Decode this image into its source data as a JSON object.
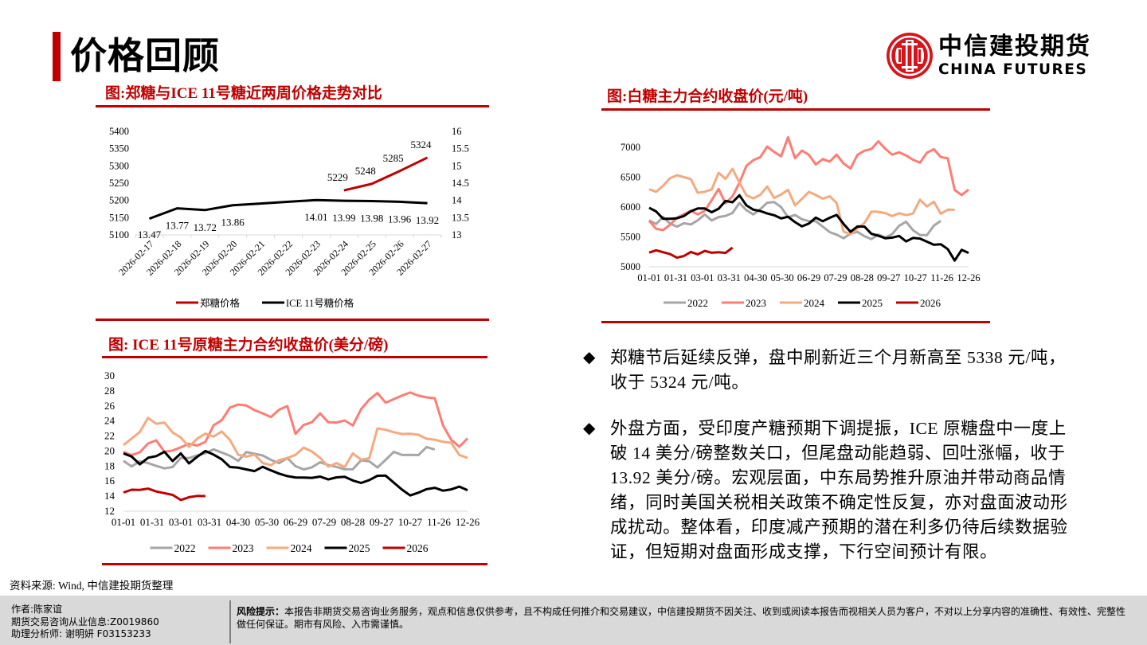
{
  "header": {
    "title": "价格回顾",
    "logo_cn": "中信建投期货",
    "logo_en": "CHINA FUTURES",
    "accent_color": "#c00000"
  },
  "figures": {
    "fig1_title": "图:郑糖与ICE 11号糖近两周价格走势对比",
    "fig2_title": "图:白糖主力合约收盘价(元/吨)",
    "fig3_title": "图: ICE 11号原糖主力合约收盘价(美分/磅)"
  },
  "chart_data": [
    {
      "type": "line",
      "title": "郑糖与ICE 11号糖近两周价格走势对比",
      "categories": [
        "2026-02-17",
        "2026-02-18",
        "2026-02-19",
        "2026-02-20",
        "2026-02-21",
        "2026-02-22",
        "2026-02-23",
        "2026-02-24",
        "2026-02-25",
        "2026-02-26",
        "2026-02-27"
      ],
      "y_left": {
        "min": 5100,
        "max": 5400,
        "ticks": [
          5100,
          5150,
          5200,
          5250,
          5300,
          5350,
          5400
        ]
      },
      "y_right": {
        "min": 13,
        "max": 16,
        "ticks": [
          "13",
          "13.5",
          "14",
          "14.5",
          "15",
          "15.5",
          "16"
        ]
      },
      "series": [
        {
          "name": "郑糖价格",
          "axis": "left",
          "color": "#c00000",
          "values": [
            null,
            null,
            null,
            null,
            null,
            null,
            null,
            5229,
            5248,
            5285,
            5324
          ],
          "labels": [
            "",
            "",
            "",
            "",
            "",
            "",
            "",
            "5229",
            "5248",
            "5285",
            "5324"
          ]
        },
        {
          "name": "ICE 11号糖价格",
          "axis": "right",
          "color": "#000000",
          "values": [
            13.47,
            13.77,
            13.72,
            13.86,
            13.91,
            13.96,
            14.01,
            13.99,
            13.98,
            13.96,
            13.92
          ],
          "labels": [
            "13.47",
            "13.77",
            "13.72",
            "13.86",
            "",
            "",
            "14.01",
            "13.99",
            "13.98",
            "13.96",
            "13.92"
          ]
        }
      ],
      "legend": [
        "郑糖价格",
        "ICE 11号糖价格"
      ],
      "legend_position": "bottom"
    },
    {
      "type": "line",
      "title": "白糖主力合约收盘价(元/吨)",
      "x_ticks": [
        "01-01",
        "01-31",
        "03-01",
        "03-31",
        "04-30",
        "05-30",
        "06-29",
        "07-29",
        "08-28",
        "09-27",
        "10-27",
        "11-26",
        "12-26"
      ],
      "ylim": [
        5000,
        7000
      ],
      "y_ticks": [
        "5000",
        "5500",
        "6000",
        "6500",
        "7000"
      ],
      "series": [
        {
          "name": "2022",
          "color": "#a6a6a6",
          "values": [
            5790,
            5720,
            5830,
            5710,
            5680,
            5730,
            5700,
            5790,
            5880,
            5770,
            5820,
            5860,
            5900,
            6060,
            5960,
            5880,
            5960,
            6060,
            6090,
            6000,
            5820,
            5880,
            5800,
            5760,
            5750,
            5680,
            5580,
            5530,
            5490,
            5560,
            5580,
            5500,
            5470,
            5540,
            5480,
            5560,
            5690,
            5750,
            5600,
            5540,
            5530,
            5680,
            5780
          ]
        },
        {
          "name": "2023",
          "color": "#ff7c74",
          "values": [
            5780,
            5640,
            5610,
            5690,
            5830,
            5880,
            5930,
            5890,
            5940,
            6110,
            6290,
            6070,
            6180,
            6400,
            6700,
            6790,
            6830,
            7000,
            6930,
            6850,
            7160,
            6830,
            6950,
            6870,
            6700,
            6810,
            6760,
            6870,
            6740,
            6650,
            6870,
            6930,
            6980,
            7100,
            6970,
            6890,
            6920,
            6860,
            6780,
            6750,
            6910,
            6960,
            6850,
            6820,
            6280,
            6190,
            6300
          ]
        },
        {
          "name": "2024",
          "color": "#f4a97f",
          "values": [
            6310,
            6260,
            6350,
            6470,
            6540,
            6500,
            6460,
            6250,
            6260,
            6290,
            6560,
            6480,
            6640,
            6400,
            6210,
            6150,
            6200,
            6330,
            6160,
            6210,
            6280,
            6040,
            6140,
            6250,
            6190,
            6150,
            6180,
            6060,
            5600,
            5550,
            5640,
            5720,
            5930,
            5920,
            5890,
            5860,
            5900,
            5860,
            5880,
            6130,
            6010,
            6080,
            5900,
            5960,
            5950
          ]
        },
        {
          "name": "2025",
          "color": "#000000",
          "values": [
            6000,
            5930,
            5800,
            5790,
            5820,
            5850,
            5920,
            5990,
            5980,
            5910,
            5960,
            6110,
            6080,
            6190,
            6040,
            5960,
            5930,
            5880,
            5870,
            5810,
            5830,
            5760,
            5680,
            5720,
            5810,
            5770,
            5820,
            5860,
            5730,
            5590,
            5670,
            5660,
            5560,
            5520,
            5470,
            5500,
            5520,
            5420,
            5470,
            5480,
            5420,
            5360,
            5390,
            5300,
            5100,
            5270,
            5240
          ]
        },
        {
          "name": "2026",
          "color": "#c00000",
          "values": [
            5250,
            5280,
            5240,
            5200,
            5160,
            5180,
            5240,
            5220,
            5270,
            5230,
            5230,
            5240,
            5320
          ]
        }
      ],
      "legend": [
        "2022",
        "2023",
        "2024",
        "2025",
        "2026"
      ],
      "legend_position": "bottom"
    },
    {
      "type": "line",
      "title": "ICE 11号原糖主力合约收盘价(美分/磅)",
      "x_ticks": [
        "01-01",
        "01-31",
        "03-01",
        "03-31",
        "04-30",
        "05-30",
        "06-29",
        "07-29",
        "08-28",
        "09-27",
        "10-27",
        "11-26",
        "12-26"
      ],
      "ylim": [
        12,
        30
      ],
      "y_ticks": [
        "12",
        "14",
        "16",
        "18",
        "20",
        "22",
        "24",
        "26",
        "28",
        "30"
      ],
      "series": [
        {
          "name": "2022",
          "color": "#a6a6a6",
          "values": [
            18.8,
            18.0,
            18.6,
            18.3,
            18.1,
            17.7,
            17.8,
            19.2,
            19.1,
            19.4,
            19.6,
            20.3,
            19.8,
            19.3,
            18.8,
            19.9,
            19.6,
            19.3,
            18.9,
            18.4,
            19.0,
            18.1,
            17.6,
            17.8,
            18.4,
            18.2,
            17.9,
            17.5,
            17.7,
            18.8,
            18.6,
            17.7,
            18.9,
            19.9,
            19.4,
            19.6,
            19.5,
            20.5,
            20.1
          ]
        },
        {
          "name": "2023",
          "color": "#ff7c74",
          "values": [
            20.0,
            19.5,
            19.8,
            20.9,
            21.5,
            19.9,
            20.0,
            20.6,
            21.0,
            20.7,
            21.1,
            23.5,
            24.1,
            25.7,
            26.3,
            26.1,
            25.4,
            24.9,
            24.6,
            25.5,
            25.9,
            22.4,
            23.5,
            23.8,
            24.9,
            23.9,
            23.8,
            24.0,
            23.5,
            25.6,
            26.8,
            27.6,
            26.5,
            26.9,
            27.3,
            27.9,
            27.4,
            27.1,
            26.9,
            23.5,
            21.5,
            20.5,
            21.8
          ]
        },
        {
          "name": "2024",
          "color": "#f4a97f",
          "values": [
            20.9,
            21.7,
            22.5,
            24.3,
            23.7,
            23.8,
            22.4,
            21.9,
            20.6,
            21.6,
            22.2,
            22.0,
            22.6,
            21.4,
            19.6,
            19.3,
            19.5,
            18.3,
            18.2,
            18.8,
            19.0,
            19.6,
            20.5,
            19.9,
            19.0,
            18.0,
            18.4,
            17.8,
            19.8,
            18.9,
            19.0,
            22.9,
            22.9,
            22.5,
            22.2,
            22.4,
            22.2,
            21.6,
            21.4,
            21.3,
            21.1,
            19.4,
            19.2
          ]
        },
        {
          "name": "2025",
          "color": "#000000",
          "values": [
            19.8,
            19.3,
            18.2,
            19.0,
            19.4,
            19.9,
            18.6,
            19.8,
            18.4,
            19.2,
            19.9,
            19.6,
            18.9,
            17.8,
            17.9,
            17.6,
            17.3,
            17.8,
            17.5,
            17.0,
            16.6,
            16.6,
            16.5,
            16.4,
            16.5,
            16.3,
            16.5,
            16.5,
            16.2,
            15.8,
            16.1,
            16.6,
            16.8,
            15.8,
            14.8,
            14.2,
            14.5,
            14.9,
            15.0,
            14.8,
            14.9,
            15.2,
            14.9
          ]
        },
        {
          "name": "2026",
          "color": "#c00000",
          "values": [
            14.6,
            14.9,
            14.8,
            14.9,
            14.7,
            14.4,
            14.1,
            13.6,
            13.9,
            14.0,
            13.9
          ]
        }
      ],
      "legend": [
        "2022",
        "2023",
        "2024",
        "2025",
        "2026"
      ],
      "legend_position": "bottom"
    }
  ],
  "commentary": {
    "bullet_mark": "◆",
    "bullets": [
      "郑糖节后延续反弹，盘中刷新近三个月新高至 5338 元/吨，收于 5324 元/吨。",
      "外盘方面，受印度产糖预期下调提振，ICE 原糖盘中一度上破 14 美分/磅整数关口，但尾盘动能趋弱、回吐涨幅，收于 13.92 美分/磅。宏观层面，中东局势推升原油并带动商品情绪，同时美国关税相关政策不确定性反复，亦对盘面波动形成扰动。整体看，印度减产预期的潜在利多仍待后续数据验证，但短期对盘面形成支撑，下行空间预计有限。"
    ]
  },
  "source": "资料来源: Wind, 中信建投期货整理",
  "footer": {
    "author": "作者:陈家谊",
    "license": "期货交易咨询从业信息:Z0019860",
    "assistant": "助理分析师:  谢明妍 F03153233",
    "risk_label": "风险提示：",
    "risk_text": "本报告非期货交易咨询业务服务，观点和信息仅供参考，且不构成任何推介和交易建议，中信建投期货不因关注、收到或阅读本报告而视相关人员为客户，不对以上分享内容的准确性、有效性、完整性做任何保证。期市有风险、入市需谨慎。"
  }
}
